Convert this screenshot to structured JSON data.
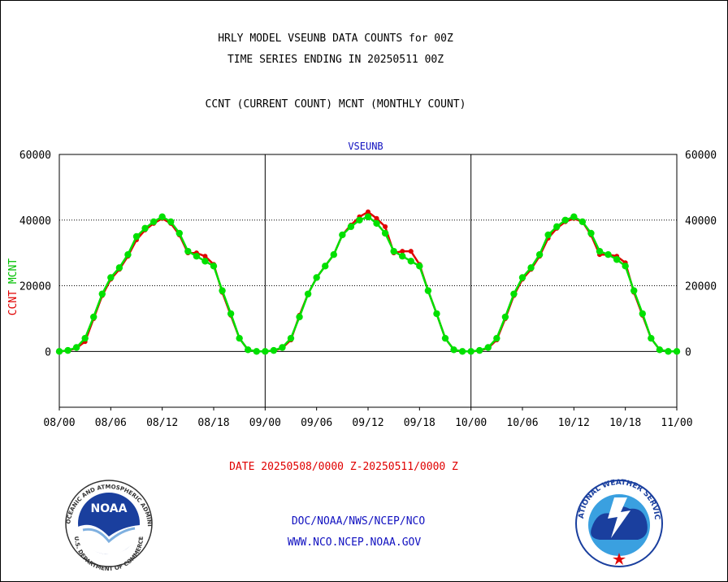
{
  "header": {
    "title_line1": "HRLY MODEL VSEUNB DATA COUNTS for 00Z",
    "title_line2": "TIME SERIES ENDING IN 20250511 00Z",
    "subtitle": "CCNT (CURRENT COUNT) MCNT (MONTHLY COUNT)"
  },
  "footer": {
    "date_range": "DATE 20250508/0000 Z-20250511/0000 Z",
    "org_line": "DOC/NOAA/NWS/NCEP/NCO",
    "url_line": "WWW.NCO.NCEP.NOAA.GOV",
    "noaa_logo_text": "NOAA",
    "noaa_ring_top": "NATIONAL OCEANIC AND ATMOSPHERIC ADMINISTRATION",
    "noaa_ring_bottom": "U.S. DEPARTMENT OF COMMERCE",
    "nws_ring_top": "NATIONAL WEATHER SERVICE"
  },
  "colors": {
    "ccnt": "#e00000",
    "mcnt": "#00e000",
    "axis": "#000000",
    "label_blue": "#1010c0"
  },
  "chart_data": {
    "type": "line",
    "title": "VSEUNB",
    "ylabel_parts": [
      "CCNT",
      "MCNT"
    ],
    "ylim": [
      -17000,
      60000
    ],
    "yticks": [
      0,
      20000,
      40000,
      60000
    ],
    "ytick_labels": [
      "0",
      "20000",
      "40000",
      "60000"
    ],
    "gridlines_y": [
      20000,
      40000
    ],
    "day_separators": [
      "09/00",
      "10/00"
    ],
    "x_tick_labels": [
      "08/00",
      "08/06",
      "08/12",
      "08/18",
      "09/00",
      "09/06",
      "09/12",
      "09/18",
      "10/00",
      "10/06",
      "10/12",
      "10/18",
      "11/00"
    ],
    "x_hours": [
      0,
      1,
      2,
      3,
      4,
      5,
      6,
      7,
      8,
      9,
      10,
      11,
      12,
      13,
      14,
      15,
      16,
      17,
      18,
      19,
      20,
      21,
      22,
      23,
      24,
      25,
      26,
      27,
      28,
      29,
      30,
      31,
      32,
      33,
      34,
      35,
      36,
      37,
      38,
      39,
      40,
      41,
      42,
      43,
      44,
      45,
      46,
      47,
      48,
      49,
      50,
      51,
      52,
      53,
      54,
      55,
      56,
      57,
      58,
      59,
      60,
      61,
      62,
      63,
      64,
      65,
      66,
      67,
      68,
      69,
      70,
      71,
      72
    ],
    "series": [
      {
        "name": "CCNT",
        "color": "#e00000",
        "values": [
          0,
          200,
          1000,
          3000,
          10000,
          17000,
          22000,
          25000,
          29000,
          34000,
          37000,
          39000,
          40500,
          39000,
          35500,
          30000,
          30000,
          29000,
          26500,
          18000,
          11000,
          4000,
          500,
          0,
          0,
          200,
          1000,
          3500,
          11000,
          17500,
          22500,
          26000,
          29500,
          35500,
          38500,
          41000,
          42500,
          40500,
          38000,
          30000,
          30500,
          30500,
          26500,
          18500,
          11500,
          4000,
          500,
          0,
          0,
          200,
          1000,
          3500,
          10000,
          17000,
          22000,
          25000,
          29000,
          34500,
          37500,
          39500,
          40500,
          39500,
          35500,
          29500,
          29500,
          29000,
          27000,
          18000,
          11000,
          4000,
          500,
          0,
          0
        ]
      },
      {
        "name": "MCNT",
        "color": "#00e000",
        "values": [
          0,
          300,
          1200,
          4000,
          10500,
          17500,
          22500,
          25500,
          29500,
          35000,
          37500,
          39500,
          41000,
          39500,
          36000,
          30500,
          29000,
          27500,
          26000,
          18500,
          11500,
          4000,
          500,
          0,
          0,
          300,
          1200,
          4000,
          10500,
          17500,
          22500,
          26000,
          29500,
          35500,
          38000,
          40000,
          41000,
          39000,
          36000,
          30500,
          29000,
          27500,
          26000,
          18500,
          11500,
          4000,
          500,
          0,
          0,
          300,
          1200,
          4000,
          10500,
          17500,
          22500,
          25500,
          29500,
          35500,
          38000,
          40000,
          41000,
          39500,
          36000,
          30500,
          29500,
          28000,
          26000,
          18500,
          11500,
          4000,
          500,
          0,
          0
        ]
      }
    ]
  }
}
